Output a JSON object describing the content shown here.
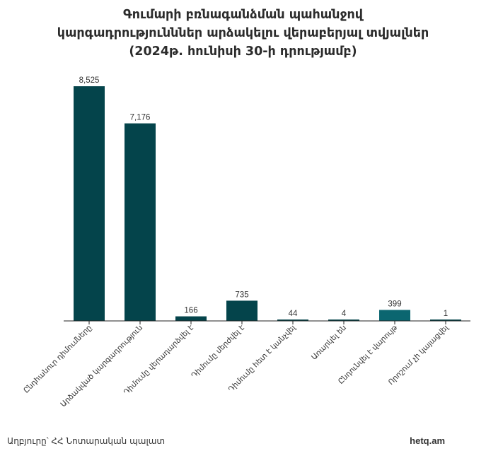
{
  "title_lines": [
    "Գումարի բռնագանձման պահանջով",
    "կարգադրությունններ արձակելու վերաբերյալ տվյալներ",
    "(2024թ. հունիսի 30-ի դրությամբ)"
  ],
  "footer": {
    "source": "Աղբյուրը՝ ՀՀ Նոտարական պալատ",
    "brand": "hetq.am"
  },
  "colors": {
    "bar": "#04444b",
    "bar_highlight": "#0b6670",
    "axis": "#222222"
  },
  "chart_data": {
    "type": "bar",
    "title": "Գումարի բռնագանձման պահանջով կարգադրությունններ արձակելու վերաբերյալ տվյալներ (2024թ. հունիսի 30-ի դրությամբ)",
    "categories": [
      "Ընդհանուր դիմումները",
      "Արձակված կարգադրություն",
      "Դիմումը վերադարձվել է",
      "Դիմումը մերժվել է",
      "Դիմումը հետ է կանչվել",
      "Առարկել են",
      "Ընդունվել է վարույթ",
      "Որոշում չի կայացվել"
    ],
    "values": [
      8525,
      7176,
      166,
      735,
      44,
      4,
      399,
      1
    ],
    "value_labels": [
      "8,525",
      "7,176",
      "166",
      "735",
      "44",
      "4",
      "399",
      "1"
    ],
    "highlight_index": 6,
    "ylim": [
      0,
      9000
    ],
    "grid": false,
    "legend": "none"
  }
}
